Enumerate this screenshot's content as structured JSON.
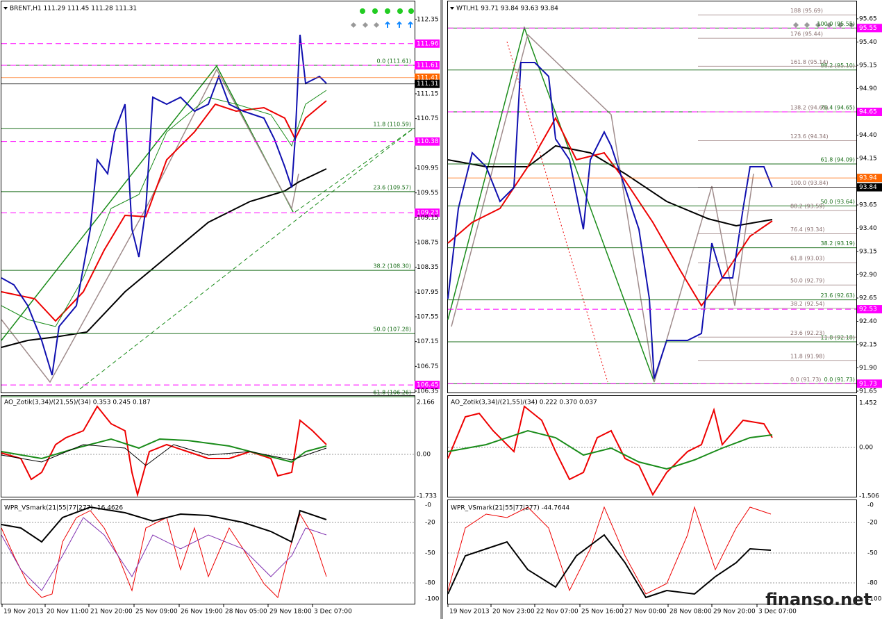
{
  "left": {
    "header": "BRENT,H1  111.29 111.45 111.28 111.31",
    "price_labels": [
      {
        "text": "112.35"
      },
      {
        "text": "111.96",
        "box": "magenta"
      },
      {
        "text": "111.61",
        "box": "magenta"
      },
      {
        "text": "111.41",
        "box": "orange"
      },
      {
        "text": "111.31",
        "box": "black"
      },
      {
        "text": "111.15"
      },
      {
        "text": "110.75"
      },
      {
        "text": "110.38",
        "box": "magenta"
      },
      {
        "text": "109.95"
      },
      {
        "text": "109.55"
      },
      {
        "text": "109.23",
        "box": "magenta"
      },
      {
        "text": "109.15"
      },
      {
        "text": "108.75"
      },
      {
        "text": "108.35"
      },
      {
        "text": "107.95"
      },
      {
        "text": "107.55"
      },
      {
        "text": "107.15"
      },
      {
        "text": "106.75"
      },
      {
        "text": "106.45",
        "box": "magenta"
      },
      {
        "text": "106.35"
      }
    ],
    "fib_labels": [
      "0.0 (111.61)",
      "11.8 (110.59)",
      "23.6 (109.57)",
      "38.2 (108.30)",
      "50.0 (107.28)",
      "61.8 (106.26)"
    ],
    "ext_labels": [],
    "ao": {
      "title": "AO_Zotik(3,34)/(21,55)/(34) 0.353 0.245 0.187",
      "ticks": [
        "2.166",
        "0.00",
        "-1.733"
      ]
    },
    "wpr": {
      "title": "WPR_VSmark(21|55|77|277) -16.4626",
      "ticks": [
        "-0",
        "-20",
        "-50",
        "-80",
        "-100"
      ]
    },
    "time_labels": [
      "19 Nov 2013",
      "20 Nov 11:00",
      "21 Nov 20:00",
      "25 Nov 09:00",
      "26 Nov 19:00",
      "28 Nov 05:00",
      "29 Nov 18:00",
      "3 Dec 07:00"
    ]
  },
  "right": {
    "header": "WTI,H1  93.71 93.84 93.63 93.84",
    "price_labels": [
      {
        "text": "95.65"
      },
      {
        "text": "95.55",
        "box": "magenta"
      },
      {
        "text": "95.40"
      },
      {
        "text": "95.15"
      },
      {
        "text": "94.90"
      },
      {
        "text": "94.65",
        "box": "magenta"
      },
      {
        "text": "94.40"
      },
      {
        "text": "94.15"
      },
      {
        "text": "93.94",
        "box": "orange"
      },
      {
        "text": "93.84",
        "box": "black"
      },
      {
        "text": "93.65"
      },
      {
        "text": "93.40"
      },
      {
        "text": "93.15"
      },
      {
        "text": "92.90"
      },
      {
        "text": "92.65"
      },
      {
        "text": "92.53",
        "box": "magenta"
      },
      {
        "text": "92.40"
      },
      {
        "text": "92.15"
      },
      {
        "text": "91.90"
      },
      {
        "text": "91.73",
        "box": "magenta"
      },
      {
        "text": "91.65"
      }
    ],
    "fib_labels": [
      "100.0 (95.55)",
      "88.2 (95.10)",
      "76.4 (94.65)",
      "61.8 (94.09)",
      "50.0 (93.64)",
      "38.2 (93.19)",
      "23.6 (92.63)",
      "11.8 (92.18)",
      "0.0 (91.73)"
    ],
    "ext_labels": [
      "188 (95.69)",
      "176 (95.44)",
      "161.8 (95.14)",
      "138.2 (94.65)",
      "123.6 (94.34)",
      "100.0 (93.84)",
      "88.2 (93.59)",
      "76.4 (93.34)",
      "61.8 (93.03)",
      "50.0 (92.79)",
      "38.2 (92.54)",
      "23.6 (92.23)",
      "11.8 (91.98)",
      "0.0 (91.73)"
    ],
    "ao": {
      "title": "AO_Zotik(3,34)/(21,55)/(34) 0.222 0.370 0.037",
      "ticks": [
        "1.452",
        "0.00",
        "-1.506"
      ]
    },
    "wpr": {
      "title": "WPR_VSmark(21|55|77|277) -44.7644",
      "ticks": [
        "-0",
        "-20",
        "-50",
        "-80",
        "-100"
      ]
    },
    "time_labels": [
      "19 Nov 2013",
      "20 Nov 23:00",
      "22 Nov 07:00",
      "25 Nov 16:00",
      "27 Nov 00:00",
      "28 Nov 08:00",
      "29 Nov 20:00",
      "3 Dec 07:00"
    ]
  },
  "watermark": "finanso.net"
}
